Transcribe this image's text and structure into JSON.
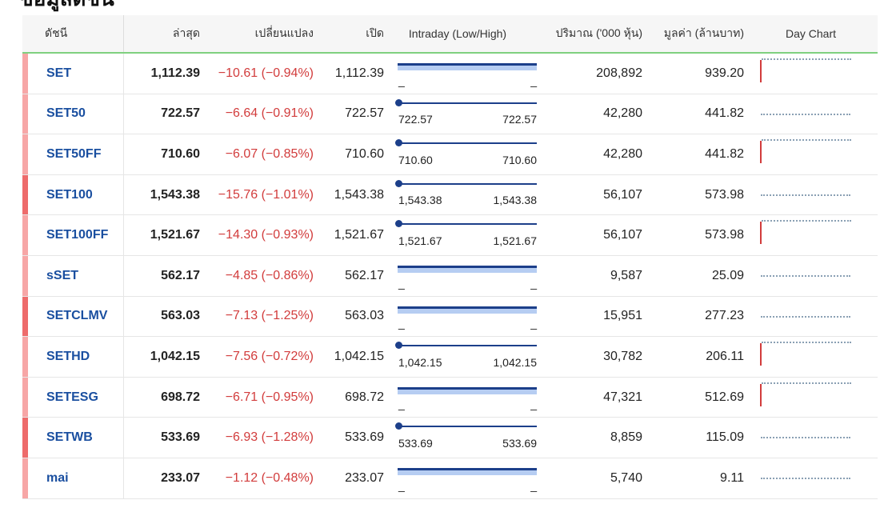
{
  "page": {
    "heading": "ข้อมูลดัชนี"
  },
  "colors": {
    "header_underline": "#7fd07f",
    "index_name": "#1a4fa0",
    "negative": "#d23c3c",
    "bar_dark": "#1c3f8a",
    "bar_light": "#b6cdf2",
    "accent_light": "#f7a6a6",
    "accent_dark": "#ee6b6b"
  },
  "table": {
    "headers": {
      "index": "ดัชนี",
      "last": "ล่าสุด",
      "change": "เปลี่ยนแปลง",
      "open": "เปิด",
      "intraday": "Intraday (Low/High)",
      "volume": "ปริมาณ ('000 หุ้น)",
      "value": "มูลค่า (ล้านบาท)",
      "day_chart": "Day Chart"
    },
    "rows": [
      {
        "name": "SET",
        "last": "1,112.39",
        "change": "−10.61 (−0.94%)",
        "open": "1,112.39",
        "low": "_",
        "high": "_",
        "volume": "208,892",
        "value": "939.20",
        "range_shown": false,
        "spark": "red",
        "accent": "light"
      },
      {
        "name": "SET50",
        "last": "722.57",
        "change": "−6.64 (−0.91%)",
        "open": "722.57",
        "low": "722.57",
        "high": "722.57",
        "volume": "42,280",
        "value": "441.82",
        "range_shown": true,
        "spark": "dotted",
        "accent": "light"
      },
      {
        "name": "SET50FF",
        "last": "710.60",
        "change": "−6.07 (−0.85%)",
        "open": "710.60",
        "low": "710.60",
        "high": "710.60",
        "volume": "42,280",
        "value": "441.82",
        "range_shown": true,
        "spark": "red",
        "accent": "light"
      },
      {
        "name": "SET100",
        "last": "1,543.38",
        "change": "−15.76 (−1.01%)",
        "open": "1,543.38",
        "low": "1,543.38",
        "high": "1,543.38",
        "volume": "56,107",
        "value": "573.98",
        "range_shown": true,
        "spark": "dotted",
        "accent": "dark"
      },
      {
        "name": "SET100FF",
        "last": "1,521.67",
        "change": "−14.30 (−0.93%)",
        "open": "1,521.67",
        "low": "1,521.67",
        "high": "1,521.67",
        "volume": "56,107",
        "value": "573.98",
        "range_shown": true,
        "spark": "red",
        "accent": "light"
      },
      {
        "name": "sSET",
        "last": "562.17",
        "change": "−4.85 (−0.86%)",
        "open": "562.17",
        "low": "_",
        "high": "_",
        "volume": "9,587",
        "value": "25.09",
        "range_shown": false,
        "spark": "dotted",
        "accent": "light"
      },
      {
        "name": "SETCLMV",
        "last": "563.03",
        "change": "−7.13 (−1.25%)",
        "open": "563.03",
        "low": "_",
        "high": "_",
        "volume": "15,951",
        "value": "277.23",
        "range_shown": false,
        "spark": "dotted",
        "accent": "dark"
      },
      {
        "name": "SETHD",
        "last": "1,042.15",
        "change": "−7.56 (−0.72%)",
        "open": "1,042.15",
        "low": "1,042.15",
        "high": "1,042.15",
        "volume": "30,782",
        "value": "206.11",
        "range_shown": true,
        "spark": "red",
        "accent": "light"
      },
      {
        "name": "SETESG",
        "last": "698.72",
        "change": "−6.71 (−0.95%)",
        "open": "698.72",
        "low": "_",
        "high": "_",
        "volume": "47,321",
        "value": "512.69",
        "range_shown": false,
        "spark": "red",
        "accent": "light"
      },
      {
        "name": "SETWB",
        "last": "533.69",
        "change": "−6.93 (−1.28%)",
        "open": "533.69",
        "low": "533.69",
        "high": "533.69",
        "volume": "8,859",
        "value": "115.09",
        "range_shown": true,
        "spark": "dotted",
        "accent": "dark"
      },
      {
        "name": "mai",
        "last": "233.07",
        "change": "−1.12 (−0.48%)",
        "open": "233.07",
        "low": "_",
        "high": "_",
        "volume": "5,740",
        "value": "9.11",
        "range_shown": false,
        "spark": "dotted",
        "accent": "light"
      }
    ]
  }
}
